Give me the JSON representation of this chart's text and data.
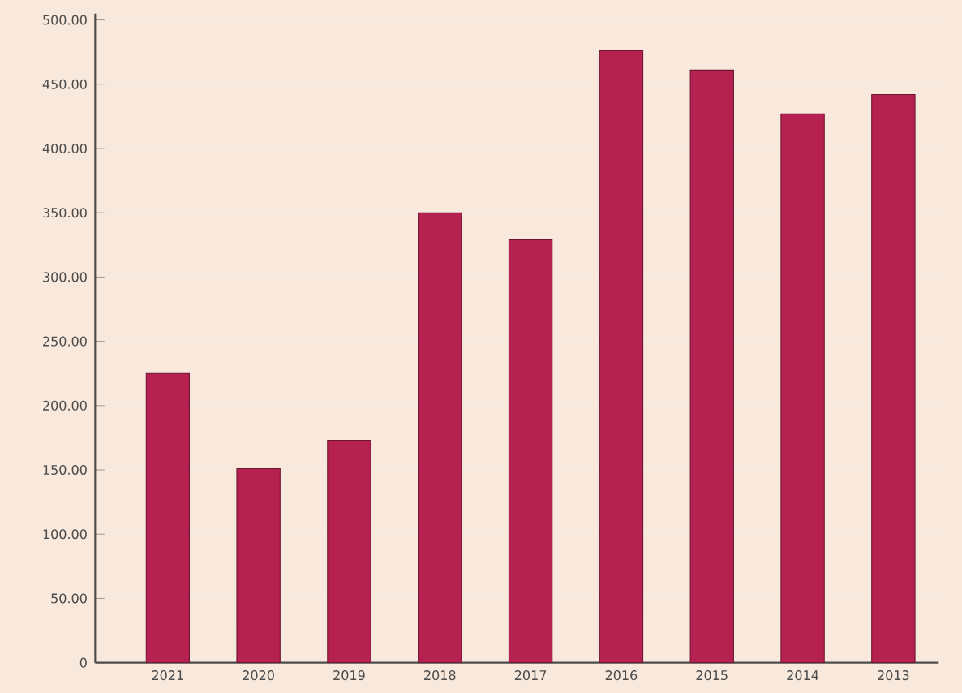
{
  "chart_data": {
    "type": "bar",
    "categories": [
      "2021",
      "2020",
      "2019",
      "2018",
      "2017",
      "2016",
      "2015",
      "2014",
      "2013"
    ],
    "values": [
      225,
      151,
      173,
      350,
      329,
      476,
      461,
      427,
      442
    ],
    "color": "#b52150",
    "ylim": [
      0,
      505
    ],
    "yticks": [
      0,
      {
        "value": 50,
        "label": "50.00"
      },
      {
        "value": 100,
        "label": "100.00"
      },
      {
        "value": 150,
        "label": "150.00"
      },
      {
        "value": 200,
        "label": "200.00"
      },
      {
        "value": 250,
        "label": "250.00"
      },
      {
        "value": 300,
        "label": "300.00"
      },
      {
        "value": 350,
        "label": "350.00"
      },
      {
        "value": 400,
        "label": "400.00"
      },
      {
        "value": 450,
        "label": "450.00"
      },
      {
        "value": 500,
        "label": "500.00"
      }
    ],
    "grid": "y"
  }
}
